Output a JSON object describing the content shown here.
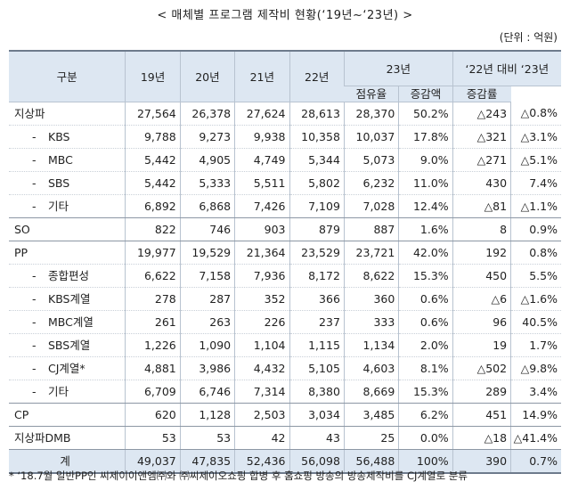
{
  "title": "< 매체별 프로그램 제작비 현황(‘19년~‘23년) >",
  "unit": "(단위 : 억원)",
  "header": {
    "category": "구분",
    "years": [
      "19년",
      "20년",
      "21년",
      "22년",
      "23년"
    ],
    "share": "점유율",
    "comparison": "‘22년 대비 ‘23년",
    "change_amount": "증감액",
    "change_rate": "증감률"
  },
  "rows": [
    {
      "label": "지상파",
      "sub": false,
      "values": [
        "27,564",
        "26,378",
        "27,624",
        "28,613",
        "28,370"
      ],
      "share": "50.2%",
      "amount": "△243",
      "rate": "△0.8%"
    },
    {
      "label": "KBS",
      "sub": true,
      "values": [
        "9,788",
        "9,273",
        "9,938",
        "10,358",
        "10,037"
      ],
      "share": "17.8%",
      "amount": "△321",
      "rate": "△3.1%"
    },
    {
      "label": "MBC",
      "sub": true,
      "values": [
        "5,442",
        "4,905",
        "4,749",
        "5,344",
        "5,073"
      ],
      "share": "9.0%",
      "amount": "△271",
      "rate": "△5.1%"
    },
    {
      "label": "SBS",
      "sub": true,
      "values": [
        "5,442",
        "5,333",
        "5,511",
        "5,802",
        "6,232"
      ],
      "share": "11.0%",
      "amount": "430",
      "rate": "7.4%"
    },
    {
      "label": "기타",
      "sub": true,
      "values": [
        "6,892",
        "6,868",
        "7,426",
        "7,109",
        "7,028"
      ],
      "share": "12.4%",
      "amount": "△81",
      "rate": "△1.1%"
    },
    {
      "label": "SO",
      "sub": false,
      "values": [
        "822",
        "746",
        "903",
        "879",
        "887"
      ],
      "share": "1.6%",
      "amount": "8",
      "rate": "0.9%"
    },
    {
      "label": "PP",
      "sub": false,
      "values": [
        "19,977",
        "19,529",
        "21,364",
        "23,529",
        "23,721"
      ],
      "share": "42.0%",
      "amount": "192",
      "rate": "0.8%"
    },
    {
      "label": "종합편성",
      "sub": true,
      "values": [
        "6,622",
        "7,158",
        "7,936",
        "8,172",
        "8,622"
      ],
      "share": "15.3%",
      "amount": "450",
      "rate": "5.5%"
    },
    {
      "label": "KBS계열",
      "sub": true,
      "values": [
        "278",
        "287",
        "352",
        "366",
        "360"
      ],
      "share": "0.6%",
      "amount": "△6",
      "rate": "△1.6%"
    },
    {
      "label": "MBC계열",
      "sub": true,
      "values": [
        "261",
        "263",
        "226",
        "237",
        "333"
      ],
      "share": "0.6%",
      "amount": "96",
      "rate": "40.5%"
    },
    {
      "label": "SBS계열",
      "sub": true,
      "values": [
        "1,226",
        "1,090",
        "1,104",
        "1,115",
        "1,134"
      ],
      "share": "2.0%",
      "amount": "19",
      "rate": "1.7%"
    },
    {
      "label": "CJ계열*",
      "sub": true,
      "values": [
        "4,881",
        "3,986",
        "4,432",
        "5,105",
        "4,603"
      ],
      "share": "8.1%",
      "amount": "△502",
      "rate": "△9.8%"
    },
    {
      "label": "기타",
      "sub": true,
      "values": [
        "6,709",
        "6,746",
        "7,314",
        "8,380",
        "8,669"
      ],
      "share": "15.3%",
      "amount": "289",
      "rate": "3.4%"
    },
    {
      "label": "CP",
      "sub": false,
      "values": [
        "620",
        "1,128",
        "2,503",
        "3,034",
        "3,485"
      ],
      "share": "6.2%",
      "amount": "451",
      "rate": "14.9%"
    },
    {
      "label": "지상파DMB",
      "sub": false,
      "values": [
        "53",
        "53",
        "42",
        "43",
        "25"
      ],
      "share": "0.0%",
      "amount": "△18",
      "rate": "△41.4%"
    }
  ],
  "total": {
    "label": "계",
    "values": [
      "49,037",
      "47,835",
      "52,436",
      "56,098",
      "56,488"
    ],
    "share": "100%",
    "amount": "390",
    "rate": "0.7%"
  },
  "footnote": "* ‘18.7월 일반PP인 씨제이이앤엠㈜와 ㈜씨제이오쇼핑 합병 후 홈쇼핑 방송의 방송제작비를 CJ계열로 분류"
}
